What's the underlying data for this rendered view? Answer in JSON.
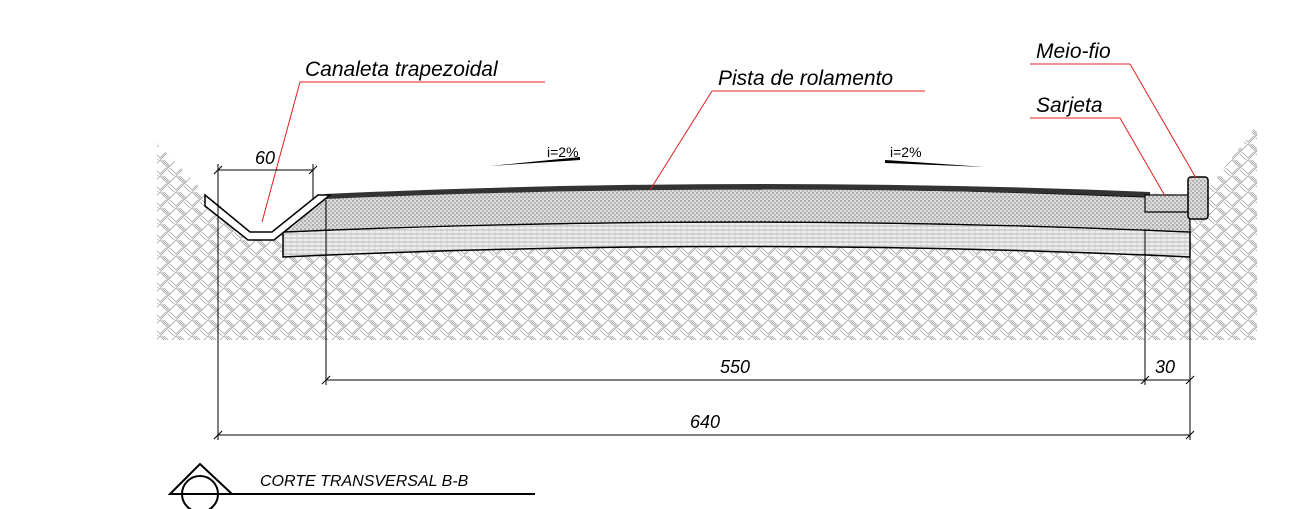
{
  "labels": {
    "channel": "Canaleta trapezoidal",
    "road": "Pista de rolamento",
    "curb": "Meio-fio",
    "gutter": "Sarjeta",
    "slope_left": "i=2%",
    "slope_right": "i=2%"
  },
  "dimensions": {
    "channel_width": "60",
    "road_width": "550",
    "gutter_width": "30",
    "total_width": "640"
  },
  "section_title": "CORTE TRANSVERSAL B-B"
}
